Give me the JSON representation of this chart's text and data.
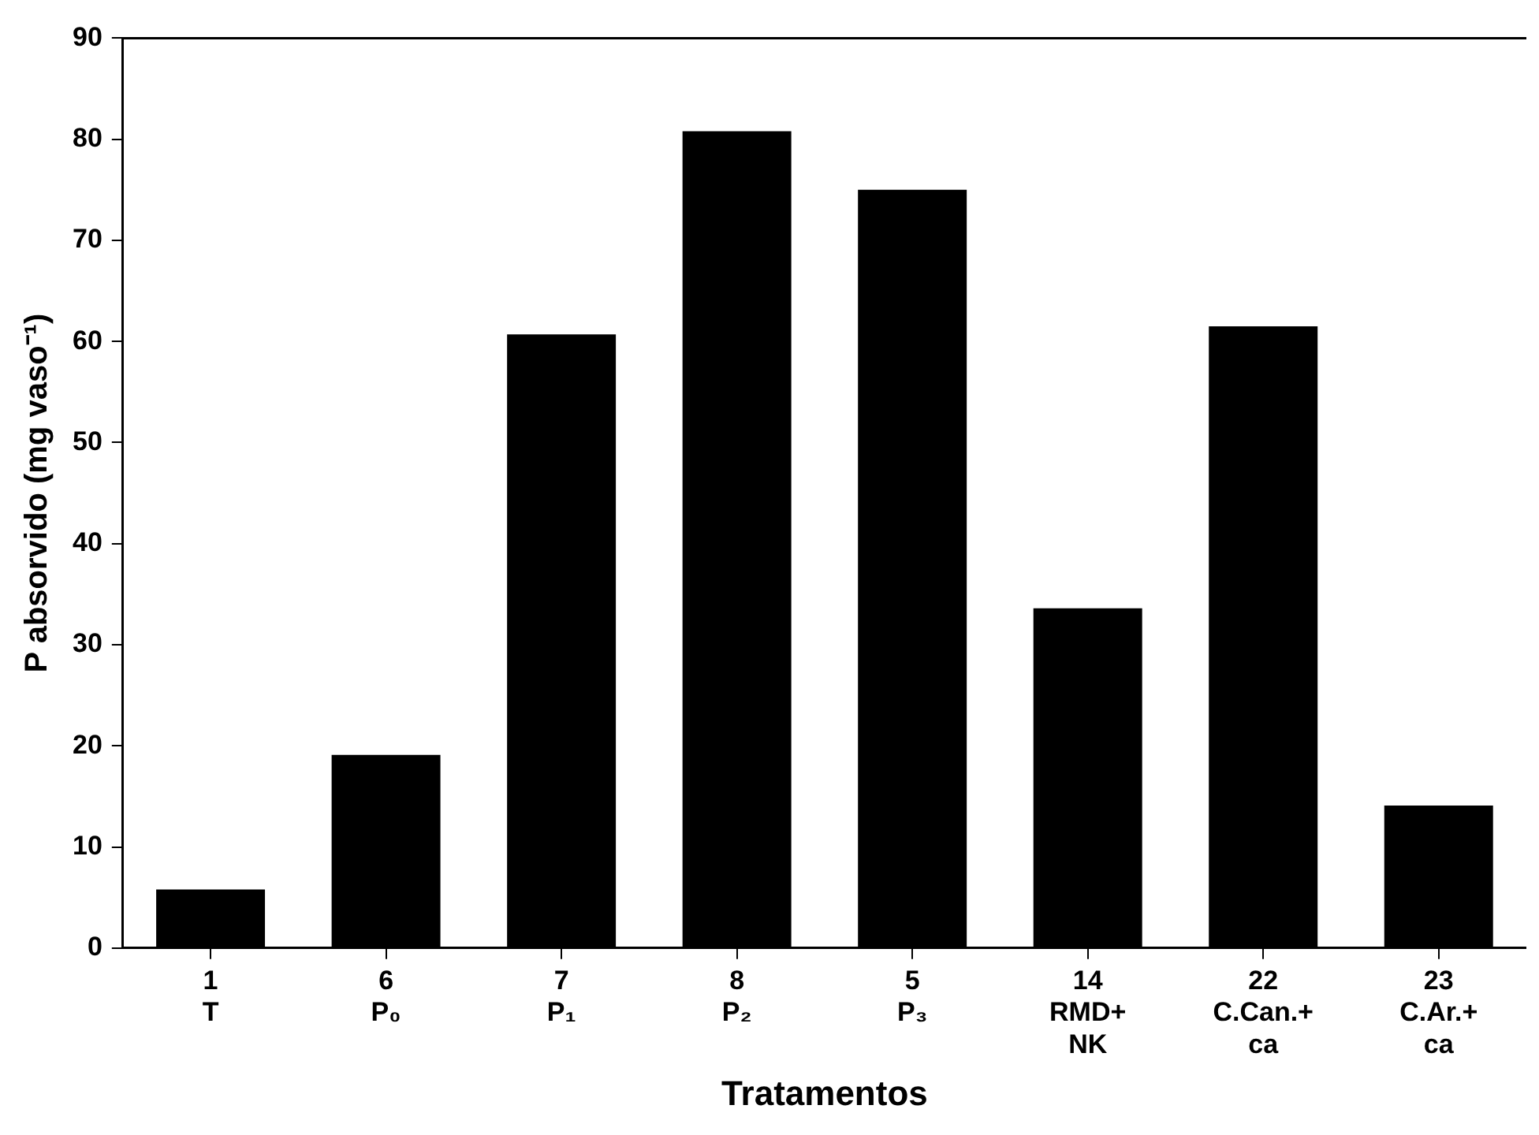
{
  "chart_data": {
    "type": "bar",
    "xlabel": "Tratamentos",
    "ylabel": "P absorvido (mg vaso⁻¹)",
    "categories": [
      "1\nT",
      "6\nP₀",
      "7\nP₁",
      "8\nP₂",
      "5\nP₃",
      "14\nRMD+\nNK",
      "22\nC.Can.+\nca",
      "23\nC.Ar.+\nca"
    ],
    "values": [
      5.8,
      19.1,
      60.7,
      80.8,
      75.0,
      33.6,
      61.5,
      14.1
    ],
    "color": "#000000",
    "ylim": [
      0,
      90
    ],
    "yticks": [
      0,
      10,
      20,
      30,
      40,
      50,
      60,
      70,
      80,
      90
    ],
    "grid": false,
    "legend": false
  }
}
